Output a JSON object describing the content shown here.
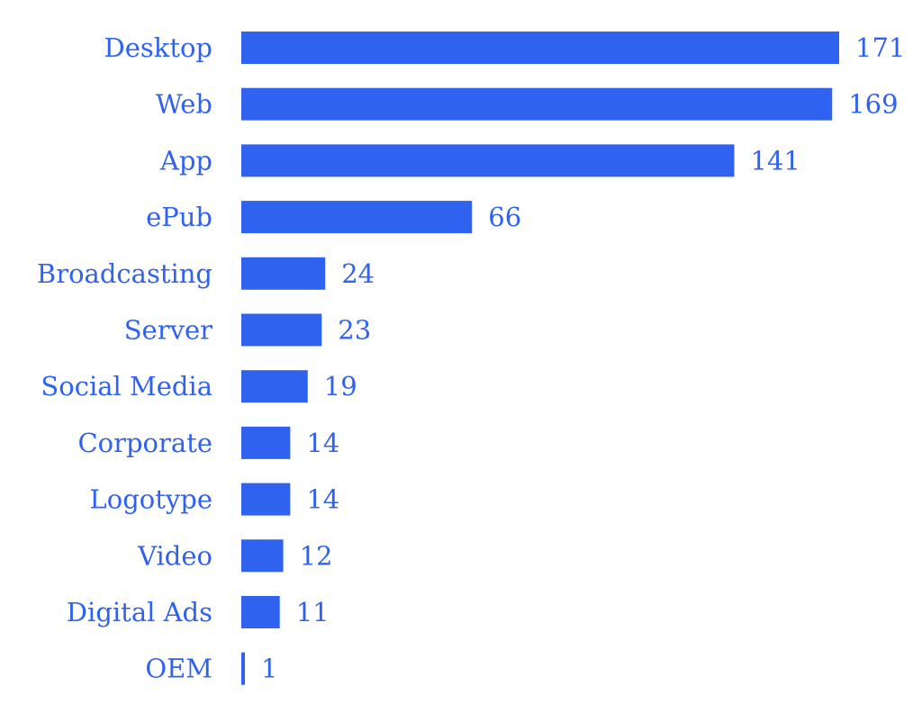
{
  "chart_data": {
    "type": "bar",
    "orientation": "horizontal",
    "categories": [
      "Desktop",
      "Web",
      "App",
      "ePub",
      "Broadcasting",
      "Server",
      "Social Media",
      "Corporate",
      "Logotype",
      "Video",
      "Digital Ads",
      "OEM"
    ],
    "values": [
      171,
      169,
      141,
      66,
      24,
      23,
      19,
      14,
      14,
      12,
      11,
      1
    ],
    "title": "",
    "xlabel": "",
    "ylabel": "",
    "xlim": [
      0,
      171
    ],
    "grid": false,
    "legend": "none",
    "bar_color": "#2f62ee",
    "label_color": "#2f62ee"
  }
}
